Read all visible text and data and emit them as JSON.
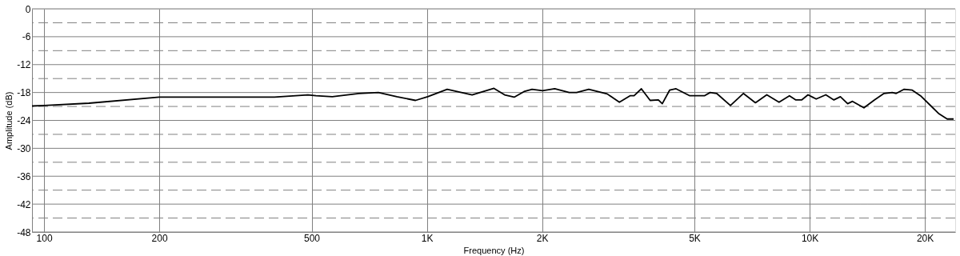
{
  "chart_data": {
    "type": "line",
    "xlabel": "Frequency (Hz)",
    "ylabel": "Amplitude (dB)",
    "log": "x",
    "grid": true,
    "marker": "none",
    "line_style": "solid",
    "xlim": [
      93,
      24000
    ],
    "ylim": [
      -48,
      0
    ],
    "xticks": [
      100,
      200,
      500,
      {
        "value": 1000,
        "label": "1K"
      },
      {
        "value": 2000,
        "label": "2K"
      },
      {
        "value": 5000,
        "label": "5K"
      },
      {
        "value": 10000,
        "label": "10K"
      },
      {
        "value": 20000,
        "label": "20K"
      }
    ],
    "yticks": [
      0,
      {
        "value": -3,
        "label": null
      },
      -6,
      {
        "value": -9,
        "label": null
      },
      -12,
      {
        "value": -15,
        "label": null
      },
      -18,
      {
        "value": -21,
        "label": null
      },
      -24,
      {
        "value": -27,
        "label": null
      },
      -30,
      {
        "value": -33,
        "label": null
      },
      -36,
      {
        "value": -39,
        "label": null
      },
      -42,
      {
        "value": -45,
        "label": null
      },
      -48
    ],
    "x": [
      93,
      100,
      131,
      200,
      316,
      400,
      489,
      513,
      566,
      664,
      747,
      835,
      934,
      1005,
      1130,
      1313,
      1497,
      1596,
      1691,
      1794,
      1883,
      2005,
      2158,
      2355,
      2461,
      2648,
      2959,
      3184,
      3394,
      3478,
      3634,
      3831,
      4025,
      4121,
      4307,
      4477,
      4864,
      5309,
      5495,
      5715,
      6209,
      6711,
      7217,
      7727,
      8318,
      8855,
      9204,
      9526,
      9902,
      10400,
      11020,
      11570,
      12030,
      12570,
      12940,
      13860,
      14760,
      15640,
      16430,
      16830,
      17660,
      18540,
      19480,
      20750,
      21780,
      22870,
      23770
    ],
    "series": [
      {
        "color": "#000000",
        "values": [
          -20.9,
          -20.8,
          -20.3,
          -19.0,
          -19.0,
          -19.0,
          -18.5,
          -18.7,
          -18.9,
          -18.2,
          -18.0,
          -18.9,
          -19.7,
          -18.9,
          -17.3,
          -18.5,
          -17.1,
          -18.5,
          -19.0,
          -17.8,
          -17.3,
          -17.6,
          -17.2,
          -18.0,
          -18.0,
          -17.3,
          -18.3,
          -20.1,
          -18.7,
          -18.7,
          -17.2,
          -19.7,
          -19.6,
          -20.4,
          -17.5,
          -17.2,
          -18.7,
          -18.7,
          -18.0,
          -18.2,
          -20.8,
          -18.2,
          -20.2,
          -18.5,
          -20.1,
          -18.7,
          -19.6,
          -19.6,
          -18.5,
          -19.4,
          -18.5,
          -19.6,
          -18.9,
          -20.4,
          -19.9,
          -21.3,
          -19.6,
          -18.2,
          -18.0,
          -18.2,
          -17.3,
          -17.5,
          -18.7,
          -20.9,
          -22.6,
          -23.7,
          -23.7
        ]
      }
    ]
  }
}
